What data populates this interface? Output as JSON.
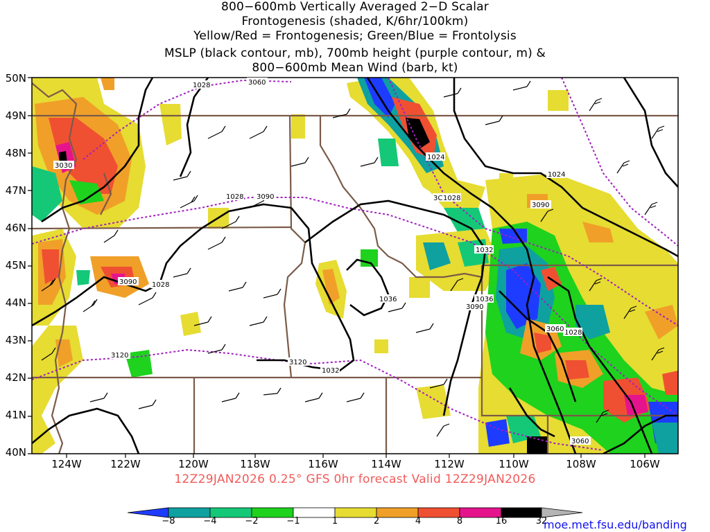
{
  "title": {
    "line1": "800−600mb Vertically Averaged 2−D Scalar",
    "line2": "Frontogenesis (shaded, K/6hr/100km)",
    "line3": "Yellow/Red = Frontogenesis;  Green/Blue = Frontolysis",
    "line4": "MSLP (black contour, mb), 700mb height (purple contour, m) &",
    "line5": "800−600mb Mean Wind (barb, kt)"
  },
  "lat_labels": [
    "50N",
    "49N",
    "48N",
    "47N",
    "46N",
    "45N",
    "44N",
    "43N",
    "42N",
    "41N",
    "40N"
  ],
  "lon_labels": [
    "124W",
    "122W",
    "120W",
    "118W",
    "116W",
    "114W",
    "112W",
    "110W",
    "108W",
    "106W"
  ],
  "mslp_labels": [
    "1028",
    "1028",
    "1024",
    "1024",
    "1028",
    "1032",
    "1036",
    "1036",
    "1028",
    "1032",
    "1028"
  ],
  "height_labels": [
    "3060",
    "3030",
    "3090",
    "3090",
    "3090",
    "3060",
    "3090",
    "3120",
    "3120",
    "3060",
    "3C"
  ],
  "valid_text": "12Z29JAN2026 0.25° GFS 0hr forecast Valid 12Z29JAN2026",
  "colorbar": {
    "labels": [
      "−8",
      "−4",
      "−2",
      "−1",
      "1",
      "2",
      "4",
      "8",
      "16",
      "32"
    ],
    "colors": [
      "#1e3cff",
      "#0fa0a0",
      "#14c878",
      "#1ed21e",
      "#ffffff",
      "#e6dc32",
      "#f0a028",
      "#f05032",
      "#e6148c",
      "#000000",
      "#b4b4b4"
    ]
  },
  "credit": "moe.met.fsu.edu/banding",
  "colors": {
    "state_border": "#7a5a48",
    "height_contour": "#a020c0",
    "mslp_contour": "#000000",
    "valid_text": "#f25a5a",
    "credit": "#1010f0"
  }
}
